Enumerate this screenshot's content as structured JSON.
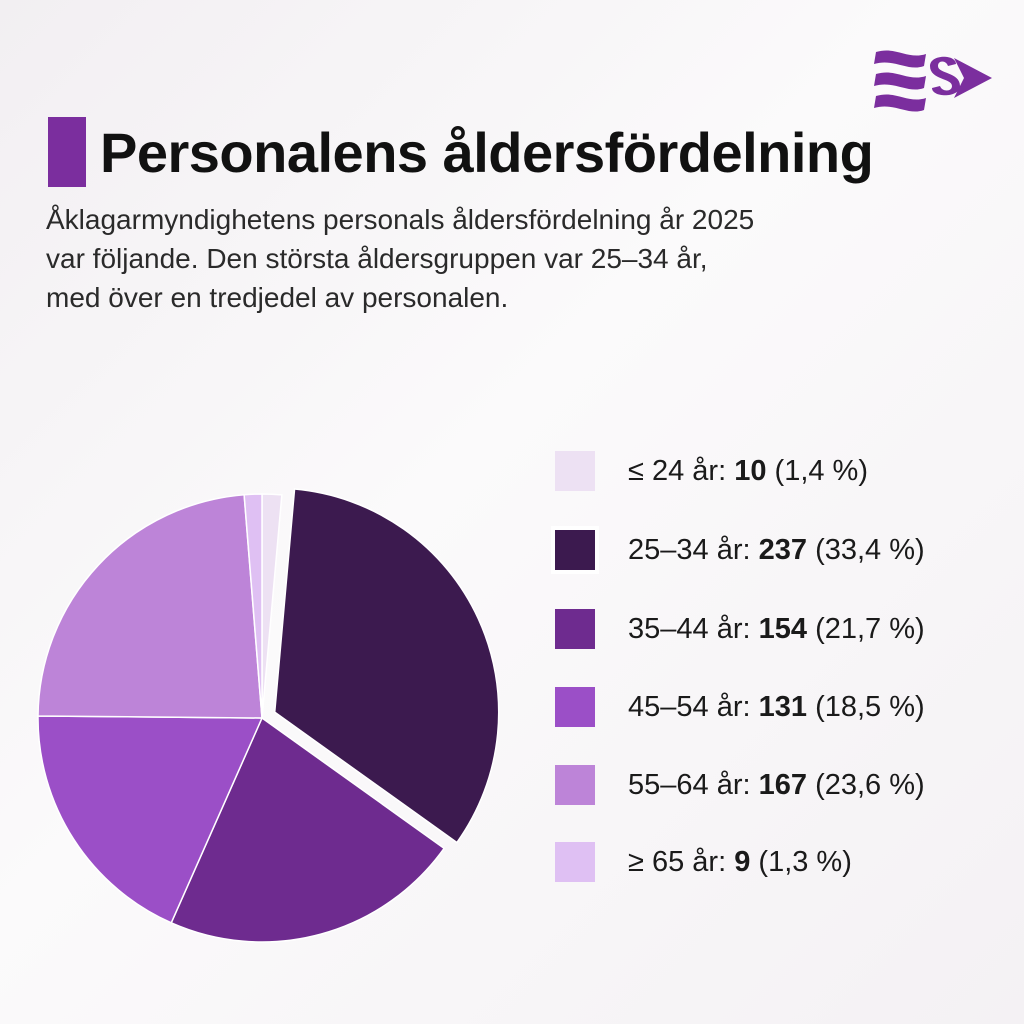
{
  "title": "Personalens åldersfördelning",
  "subtitle_lines": [
    "Åklagarmyndighetens personals åldersfördelning år 2025",
    "var följande. Den största åldersgruppen var 25–34 år,",
    "med över en tredjedel av personalen."
  ],
  "logo": {
    "icon": "prosecution-authority-logo-icon",
    "color": "#7b2e9e"
  },
  "legend": [
    {
      "label": "≤ 24 år:",
      "value": "10",
      "pct": "(1,4 %)",
      "color": "#ede1f3"
    },
    {
      "label": "25–34 år:",
      "value": "237",
      "pct": "(33,4 %)",
      "color": "#3c1a4f"
    },
    {
      "label": "35–44 år:",
      "value": "154",
      "pct": "(21,7 %)",
      "color": "#6e2b8f"
    },
    {
      "label": "45–54 år:",
      "value": "131",
      "pct": "(18,5 %)",
      "color": "#9b4fc7"
    },
    {
      "label": "55–64 år:",
      "value": "167",
      "pct": "(23,6 %)",
      "color": "#bd84d8"
    },
    {
      "label": "≥ 65 år:",
      "value": "9",
      "pct": "(1,3 %)",
      "color": "#dfc0f3"
    }
  ],
  "chart_data": {
    "type": "pie",
    "categories": [
      "≤ 24 år",
      "25–34 år",
      "35–44 år",
      "45–54 år",
      "55–64 år",
      "≥ 65 år"
    ],
    "values": [
      10,
      237,
      154,
      131,
      167,
      9
    ],
    "percent": [
      1.4,
      33.4,
      21.7,
      18.5,
      23.6,
      1.3
    ],
    "colors": [
      "#ede1f3",
      "#3c1a4f",
      "#6e2b8f",
      "#9b4fc7",
      "#bd84d8",
      "#dfc0f3"
    ],
    "exploded": "25–34 år",
    "legend_position": "right"
  }
}
